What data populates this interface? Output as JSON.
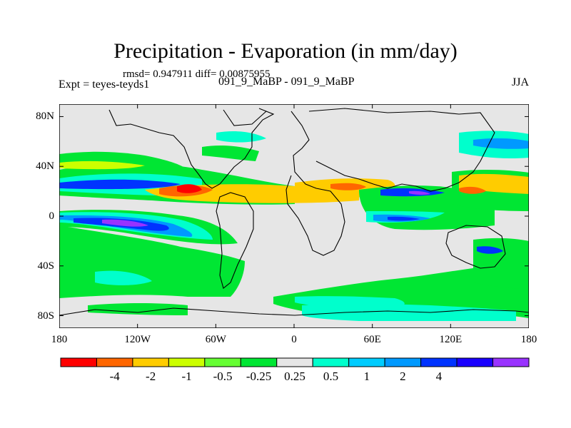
{
  "title": "Precipitation - Evaporation (in mm/day)",
  "stats": "rmsd= 0.947911 diff= 0.00875955",
  "experiment": "Expt = teyes-teyds1",
  "comparison": "091_9_MaBP - 091_9_MaBP",
  "season": "JJA",
  "map": {
    "lon_range": [
      -180,
      180
    ],
    "lat_range": [
      -90,
      90
    ],
    "y_ticks": [
      {
        "lat": 80,
        "label": "80N"
      },
      {
        "lat": 40,
        "label": "40N"
      },
      {
        "lat": 0,
        "label": "0"
      },
      {
        "lat": -40,
        "label": "40S"
      },
      {
        "lat": -80,
        "label": "80S"
      }
    ],
    "x_ticks": [
      {
        "lon": -180,
        "label": "180"
      },
      {
        "lon": -120,
        "label": "120W"
      },
      {
        "lon": -60,
        "label": "60W"
      },
      {
        "lon": 0,
        "label": "0"
      },
      {
        "lon": 60,
        "label": "60E"
      },
      {
        "lon": 120,
        "label": "120E"
      },
      {
        "lon": 180,
        "label": "180"
      }
    ],
    "background_color": "#e6e6e6"
  },
  "colorbar": {
    "colors": [
      "#ff0000",
      "#ff6600",
      "#ffcc00",
      "#ccff00",
      "#66ff33",
      "#00e633",
      "#e6e6e6",
      "#00ffcc",
      "#00ccff",
      "#0099ff",
      "#0033ff",
      "#1a00ff",
      "#9933ff"
    ],
    "labels": [
      "-4",
      "-2",
      "-1",
      "-0.5",
      "-0.25",
      "0.25",
      "0.5",
      "1",
      "2",
      "4"
    ]
  }
}
